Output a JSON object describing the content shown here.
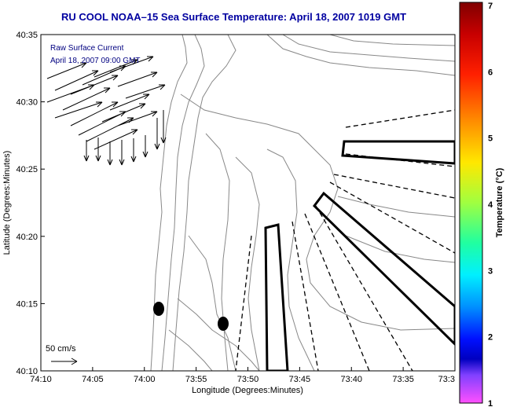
{
  "title": "RU COOL  NOAA–15  Sea Surface Temperature:  April 18, 2007 1019 GMT",
  "map": {
    "legend_line1": "Raw Surface Current",
    "legend_line2": "April 18, 2007 09:00 GMT",
    "scale_label": "50 cm/s",
    "xlabel": "Longitude (Degrees:Minutes)",
    "ylabel": "Latitude (Degrees:Minutes)",
    "x_ticks": [
      "74:10",
      "74:05",
      "74:00",
      "73:55",
      "73:50",
      "73:45",
      "73:40",
      "73:35",
      "73:3"
    ],
    "y_ticks": [
      "40:35",
      "40:30",
      "40:25",
      "40:20",
      "40:15",
      "40:10"
    ]
  },
  "colorbar": {
    "label": "Temperature (°C)",
    "ticks": [
      "7",
      "6",
      "5",
      "4",
      "3",
      "2",
      "1"
    ],
    "range": [
      1,
      7
    ]
  },
  "colors": {
    "title": "#0000a0",
    "legend_text": "#000080",
    "contour": "#888888",
    "frame": "#000000"
  }
}
